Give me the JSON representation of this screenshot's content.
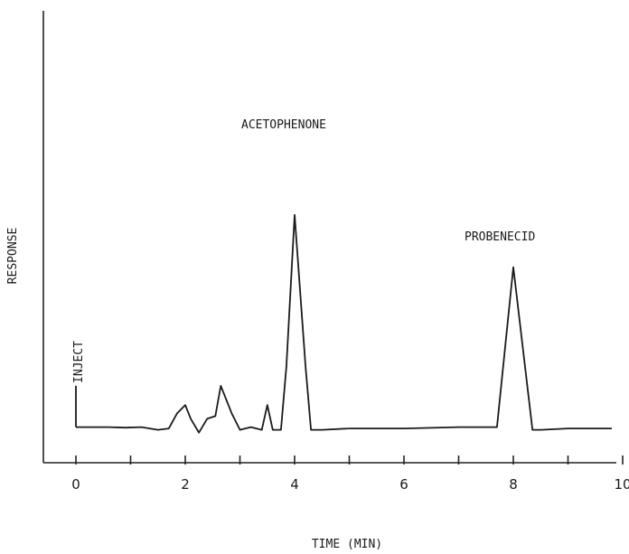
{
  "chart_data": {
    "type": "line",
    "title": "",
    "xlabel": "TIME (MIN)",
    "ylabel": "RESPONSE",
    "xlim": [
      0,
      10
    ],
    "x_ticks": [
      0,
      1,
      2,
      3,
      4,
      5,
      6,
      7,
      8,
      9,
      10
    ],
    "x_tick_labels": [
      "0",
      "2",
      "4",
      "6",
      "8",
      "10"
    ],
    "y_ticks_shown": false,
    "grid": false,
    "ylim": [
      0,
      100
    ],
    "series": [
      {
        "x": [
          0,
          0.3,
          0.6,
          0.9,
          1.2,
          1.5,
          1.7,
          1.85,
          2.0,
          2.1,
          2.25,
          2.4,
          2.55,
          2.65,
          2.85,
          3.0,
          3.2,
          3.4,
          3.5,
          3.6,
          3.75,
          3.85,
          4.0,
          4.2,
          4.3,
          4.5,
          5.0,
          6.0,
          7.0,
          7.7,
          8.0,
          8.35,
          8.5,
          9.0,
          9.5,
          9.8
        ],
        "y": [
          8,
          8,
          8,
          7.8,
          8,
          7,
          7.5,
          13,
          16,
          11,
          6,
          11,
          12,
          23,
          13,
          7,
          8,
          7,
          16,
          7,
          7,
          30,
          85,
          30,
          7,
          7,
          7.5,
          7.5,
          8,
          8,
          66,
          7,
          7,
          7.5,
          7.5,
          7.5
        ]
      }
    ],
    "annotations": [
      {
        "text": "INJECT",
        "x": 0,
        "orientation": "vertical"
      },
      {
        "text": "ACETOPHENONE",
        "x": 4
      },
      {
        "text": "PROBENECID",
        "x": 8
      }
    ],
    "inject_marker": {
      "x": 0,
      "y": 23
    }
  }
}
